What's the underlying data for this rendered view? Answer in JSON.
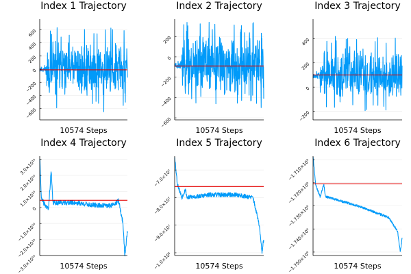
{
  "colors": {
    "series": "#009af9",
    "reference": "#e30000",
    "grid": "#ececec",
    "axis": "#000000"
  },
  "chart_data": [
    {
      "type": "line",
      "title": "Index 1 Trajectory",
      "xlabel": "10574 Steps",
      "ylabel": "",
      "grid": true,
      "x_count": 10574,
      "ylim": [
        -770,
        760
      ],
      "yticks": [
        {
          "value": 600,
          "label": "600"
        },
        {
          "value": 400,
          "label": "400"
        },
        {
          "value": 200,
          "label": "200"
        },
        {
          "value": 0,
          "label": "0"
        },
        {
          "value": -200,
          "label": "−200"
        },
        {
          "value": -400,
          "label": "−400"
        },
        {
          "value": -600,
          "label": "−600"
        }
      ],
      "reference_y": -10,
      "trajectory": {
        "start": 0,
        "mode": "oscillate",
        "amp": 360,
        "spike": 650,
        "seed": 11
      }
    },
    {
      "type": "line",
      "title": "Index 2 Trajectory",
      "xlabel": "10574 Steps",
      "ylabel": "",
      "grid": true,
      "x_count": 10574,
      "ylim": [
        -620,
        370
      ],
      "yticks": [
        {
          "value": 200,
          "label": "200"
        },
        {
          "value": 0,
          "label": "0"
        },
        {
          "value": -200,
          "label": "−200"
        },
        {
          "value": -400,
          "label": "−400"
        },
        {
          "value": -600,
          "label": "−600"
        }
      ],
      "reference_y": -90,
      "trajectory": {
        "start": -80,
        "mode": "oscillate",
        "amp": 260,
        "spike": 420,
        "seed": 23
      }
    },
    {
      "type": "line",
      "title": "Index 3 Trajectory",
      "xlabel": "10574 Steps",
      "ylabel": "",
      "grid": true,
      "x_count": 10574,
      "ylim": [
        -270,
        560
      ],
      "yticks": [
        {
          "value": 400,
          "label": "400"
        },
        {
          "value": 200,
          "label": "200"
        },
        {
          "value": 0,
          "label": "0"
        },
        {
          "value": -200,
          "label": "−200"
        }
      ],
      "reference_y": 100,
      "trajectory": {
        "start": 100,
        "mode": "oscillate",
        "amp": 170,
        "spike": 320,
        "seed": 37
      }
    },
    {
      "type": "line",
      "title": "Index 4 Trajectory",
      "xlabel": "10574 Steps",
      "ylabel": "",
      "grid": true,
      "x_count": 10574,
      "ylim": [
        -30000000000.0,
        32000000000.0
      ],
      "yticks": [
        {
          "value": 30000000000.0,
          "label": "3.0×10¹⁰"
        },
        {
          "value": 20000000000.0,
          "label": "2.0×10¹⁰"
        },
        {
          "value": 10000000000.0,
          "label": "1.0×10¹⁰"
        },
        {
          "value": 0,
          "label": "0"
        },
        {
          "value": -10000000000.0,
          "label": "−1.0×10¹⁰"
        },
        {
          "value": -20000000000.0,
          "label": "−2.0×10¹⁰"
        },
        {
          "value": -30000000000.0,
          "label": "−3.0×10¹⁰"
        }
      ],
      "reference_y": 4500000000.0,
      "trajectory": {
        "keys": [
          [
            0,
            31000000000.0
          ],
          [
            0.02,
            5000000000.0
          ],
          [
            0.08,
            0
          ],
          [
            0.1,
            -1000000000.0
          ],
          [
            0.13,
            23000000000.0
          ],
          [
            0.15,
            3000000000.0
          ],
          [
            0.4,
            3000000000.0
          ],
          [
            0.6,
            1500000000.0
          ],
          [
            0.8,
            1000000000.0
          ],
          [
            0.9,
            4000000000.0
          ],
          [
            0.95,
            -10000000000.0
          ],
          [
            0.97,
            -30000000000.0
          ],
          [
            1,
            -15000000000.0
          ]
        ],
        "noise": 1500000000.0,
        "seed": 41
      }
    },
    {
      "type": "line",
      "title": "Index 5 Trajectory",
      "xlabel": "10574 Steps",
      "ylabel": "",
      "grid": true,
      "x_count": 10574,
      "ylim": [
        -101000000.0,
        -65000000.0
      ],
      "yticks": [
        {
          "value": -70000000.0,
          "label": "−7.0×10⁷"
        },
        {
          "value": -80000000.0,
          "label": "−8.0×10⁷"
        },
        {
          "value": -90000000.0,
          "label": "−9.0×10⁷"
        },
        {
          "value": -100000000.0,
          "label": "−1.0×10⁸"
        }
      ],
      "reference_y": -76000000.0,
      "trajectory": {
        "keys": [
          [
            0,
            -65000000.0
          ],
          [
            0.03,
            -75000000.0
          ],
          [
            0.08,
            -80000000.0
          ],
          [
            0.12,
            -77000000.0
          ],
          [
            0.14,
            -80000000.0
          ],
          [
            0.4,
            -79000000.0
          ],
          [
            0.7,
            -79000000.0
          ],
          [
            0.88,
            -80000000.0
          ],
          [
            0.95,
            -90000000.0
          ],
          [
            0.98,
            -100000000.0
          ],
          [
            1,
            -95000000.0
          ]
        ],
        "noise": 800000.0,
        "seed": 53
      }
    },
    {
      "type": "line",
      "title": "Index 6 Trajectory",
      "xlabel": "10574 Steps",
      "ylabel": "",
      "grid": true,
      "x_count": 10574,
      "ylim": [
        -1751500000.0,
        -1708500000.0
      ],
      "yticks": [
        {
          "value": -1710000000.0,
          "label": "−1.710×10⁹"
        },
        {
          "value": -1720000000.0,
          "label": "−1.720×10⁹"
        },
        {
          "value": -1730000000.0,
          "label": "−1.730×10⁹"
        },
        {
          "value": -1740000000.0,
          "label": "−1.740×10⁹"
        },
        {
          "value": -1750000000.0,
          "label": "−1.750×10⁹"
        }
      ],
      "reference_y": -1720500000.0,
      "trajectory": {
        "keys": [
          [
            0,
            -1708500000.0
          ],
          [
            0.03,
            -1721000000.0
          ],
          [
            0.08,
            -1726000000.0
          ],
          [
            0.12,
            -1720500000.0
          ],
          [
            0.14,
            -1726000000.0
          ],
          [
            0.5,
            -1730000000.0
          ],
          [
            0.85,
            -1735000000.0
          ],
          [
            0.95,
            -1741000000.0
          ],
          [
            0.98,
            -1750000000.0
          ],
          [
            1,
            -1744000000.0
          ]
        ],
        "noise": 500000.0,
        "seed": 67
      }
    }
  ]
}
